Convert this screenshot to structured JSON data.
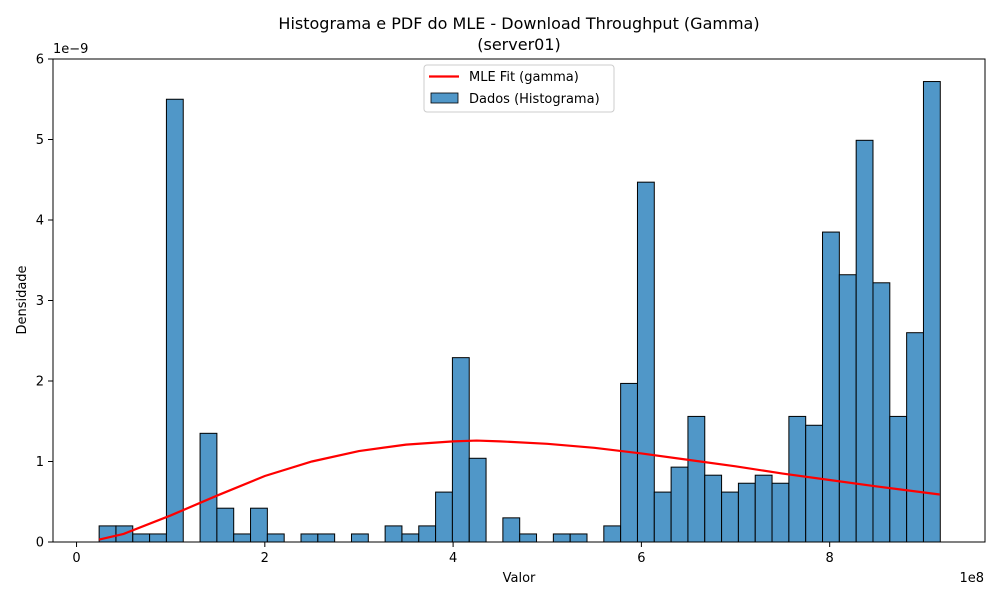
{
  "chart_data": {
    "type": "bar",
    "title_line1": "Histograma e PDF do MLE - Download Throughput (Gamma)",
    "title_line2": "(server01)",
    "xlabel": "Valor",
    "ylabel": "Densidade",
    "x_offset_label": "1e8",
    "y_offset_label": "1e−9",
    "xlim": [
      -0.25,
      9.65
    ],
    "ylim": [
      0,
      6
    ],
    "x_ticks": [
      0,
      2,
      4,
      6,
      8
    ],
    "x_tick_labels": [
      "0",
      "2",
      "4",
      "6",
      "8"
    ],
    "y_ticks": [
      0,
      1,
      2,
      3,
      4,
      5,
      6
    ],
    "y_tick_labels": [
      "0",
      "1",
      "2",
      "3",
      "4",
      "5",
      "6"
    ],
    "bins": {
      "start": 0.24,
      "width": 0.1787,
      "values": [
        0.2,
        0.2,
        0.1,
        0.1,
        5.5,
        0,
        1.35,
        0.42,
        0.1,
        0.42,
        0.1,
        0,
        0.1,
        0.1,
        0,
        0.1,
        0,
        0.2,
        0.1,
        0.2,
        0.62,
        2.29,
        1.04,
        0,
        0.3,
        0.1,
        0,
        0.1,
        0.1,
        0,
        0.2,
        1.97,
        4.47,
        0.62,
        0.93,
        1.56,
        0.83,
        0.62,
        0.73,
        0.83,
        0.73,
        1.56,
        1.45,
        3.85,
        3.32,
        4.99,
        3.22,
        1.56,
        2.6,
        5.72
      ]
    },
    "fit": {
      "x": [
        0.24,
        0.5,
        1.0,
        1.5,
        2.0,
        2.5,
        3.0,
        3.5,
        4.0,
        4.25,
        4.5,
        5.0,
        5.5,
        6.0,
        6.5,
        7.0,
        7.5,
        8.0,
        8.5,
        9.17
      ],
      "y": [
        0.03,
        0.1,
        0.33,
        0.58,
        0.82,
        1.0,
        1.13,
        1.21,
        1.25,
        1.26,
        1.25,
        1.22,
        1.17,
        1.1,
        1.02,
        0.94,
        0.85,
        0.77,
        0.69,
        0.59
      ]
    },
    "series": [
      {
        "name": "MLE Fit (gamma)",
        "color": "#ff0000",
        "kind": "line"
      },
      {
        "name": "Dados (Histograma)",
        "color": "#5097c8",
        "kind": "bar"
      }
    ],
    "legend_position": "upper center",
    "grid": false
  }
}
